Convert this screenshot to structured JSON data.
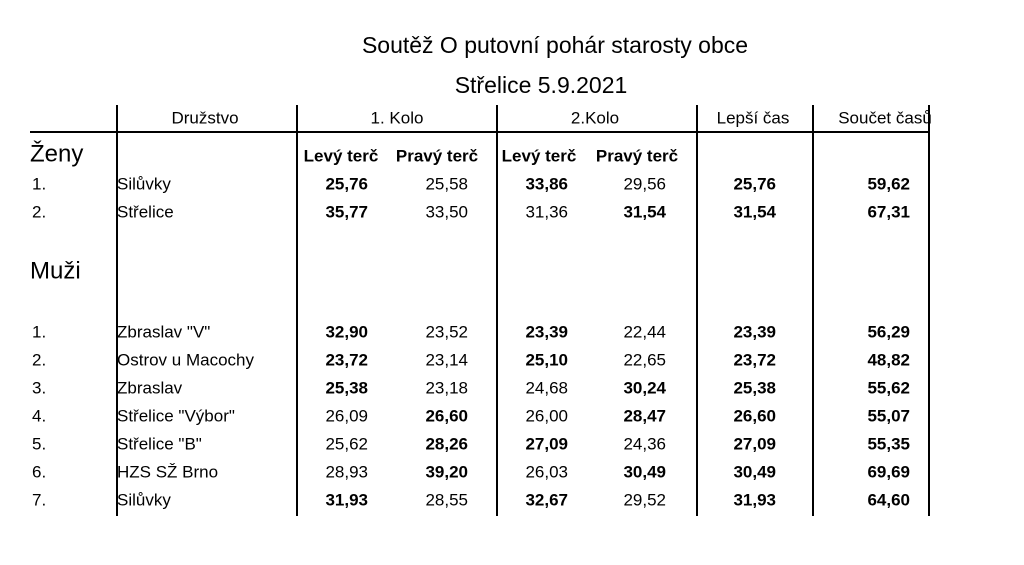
{
  "title": [
    "Soutěž O putovní pohár starosty obce",
    "Střelice 5.9.2021"
  ],
  "table": {
    "header": [
      "Družstvo",
      "1. Kolo",
      "2.Kolo",
      "Lepší čas",
      "Součet časů"
    ],
    "subheader": [
      "Levý terč",
      "Pravý terč",
      "Levý terč",
      "Pravý terč"
    ],
    "sections": [
      {
        "label": "Ženy",
        "rows": [
          {
            "rank": "1.",
            "team": "Silůvky",
            "cells": [
              "25,76",
              "25,58",
              "33,86",
              "29,56",
              "25,76",
              "59,62"
            ],
            "bold": [
              true,
              false,
              true,
              false,
              true,
              true
            ]
          },
          {
            "rank": "2.",
            "team": "Střelice",
            "cells": [
              "35,77",
              "33,50",
              "31,36",
              "31,54",
              "31,54",
              "67,31"
            ],
            "bold": [
              true,
              false,
              false,
              true,
              true,
              true
            ]
          }
        ]
      },
      {
        "label": "Muži",
        "rows": [
          {
            "rank": "1.",
            "team": "Zbraslav \"V\"",
            "cells": [
              "32,90",
              "23,52",
              "23,39",
              "22,44",
              "23,39",
              "56,29"
            ],
            "bold": [
              true,
              false,
              true,
              false,
              true,
              true
            ]
          },
          {
            "rank": "2.",
            "team": "Ostrov u Macochy",
            "cells": [
              "23,72",
              "23,14",
              "25,10",
              "22,65",
              "23,72",
              "48,82"
            ],
            "bold": [
              true,
              false,
              true,
              false,
              true,
              true
            ]
          },
          {
            "rank": "3.",
            "team": "Zbraslav",
            "cells": [
              "25,38",
              "23,18",
              "24,68",
              "30,24",
              "25,38",
              "55,62"
            ],
            "bold": [
              true,
              false,
              false,
              true,
              true,
              true
            ]
          },
          {
            "rank": "4.",
            "team": "Střelice \"Výbor\"",
            "cells": [
              "26,09",
              "26,60",
              "26,00",
              "28,47",
              "26,60",
              "55,07"
            ],
            "bold": [
              false,
              true,
              false,
              true,
              true,
              true
            ]
          },
          {
            "rank": "5.",
            "team": "Střelice \"B\"",
            "cells": [
              "25,62",
              "28,26",
              "27,09",
              "24,36",
              "27,09",
              "55,35"
            ],
            "bold": [
              false,
              true,
              true,
              false,
              true,
              true
            ]
          },
          {
            "rank": "6.",
            "team": "HZS SŽ Brno",
            "cells": [
              "28,93",
              "39,20",
              "26,03",
              "30,49",
              "30,49",
              "69,69"
            ],
            "bold": [
              false,
              true,
              false,
              true,
              true,
              true
            ]
          },
          {
            "rank": "7.",
            "team": "Silůvky",
            "cells": [
              "31,93",
              "28,55",
              "32,67",
              "29,52",
              "31,93",
              "64,60"
            ],
            "bold": [
              true,
              false,
              true,
              false,
              true,
              true
            ]
          }
        ]
      }
    ]
  }
}
